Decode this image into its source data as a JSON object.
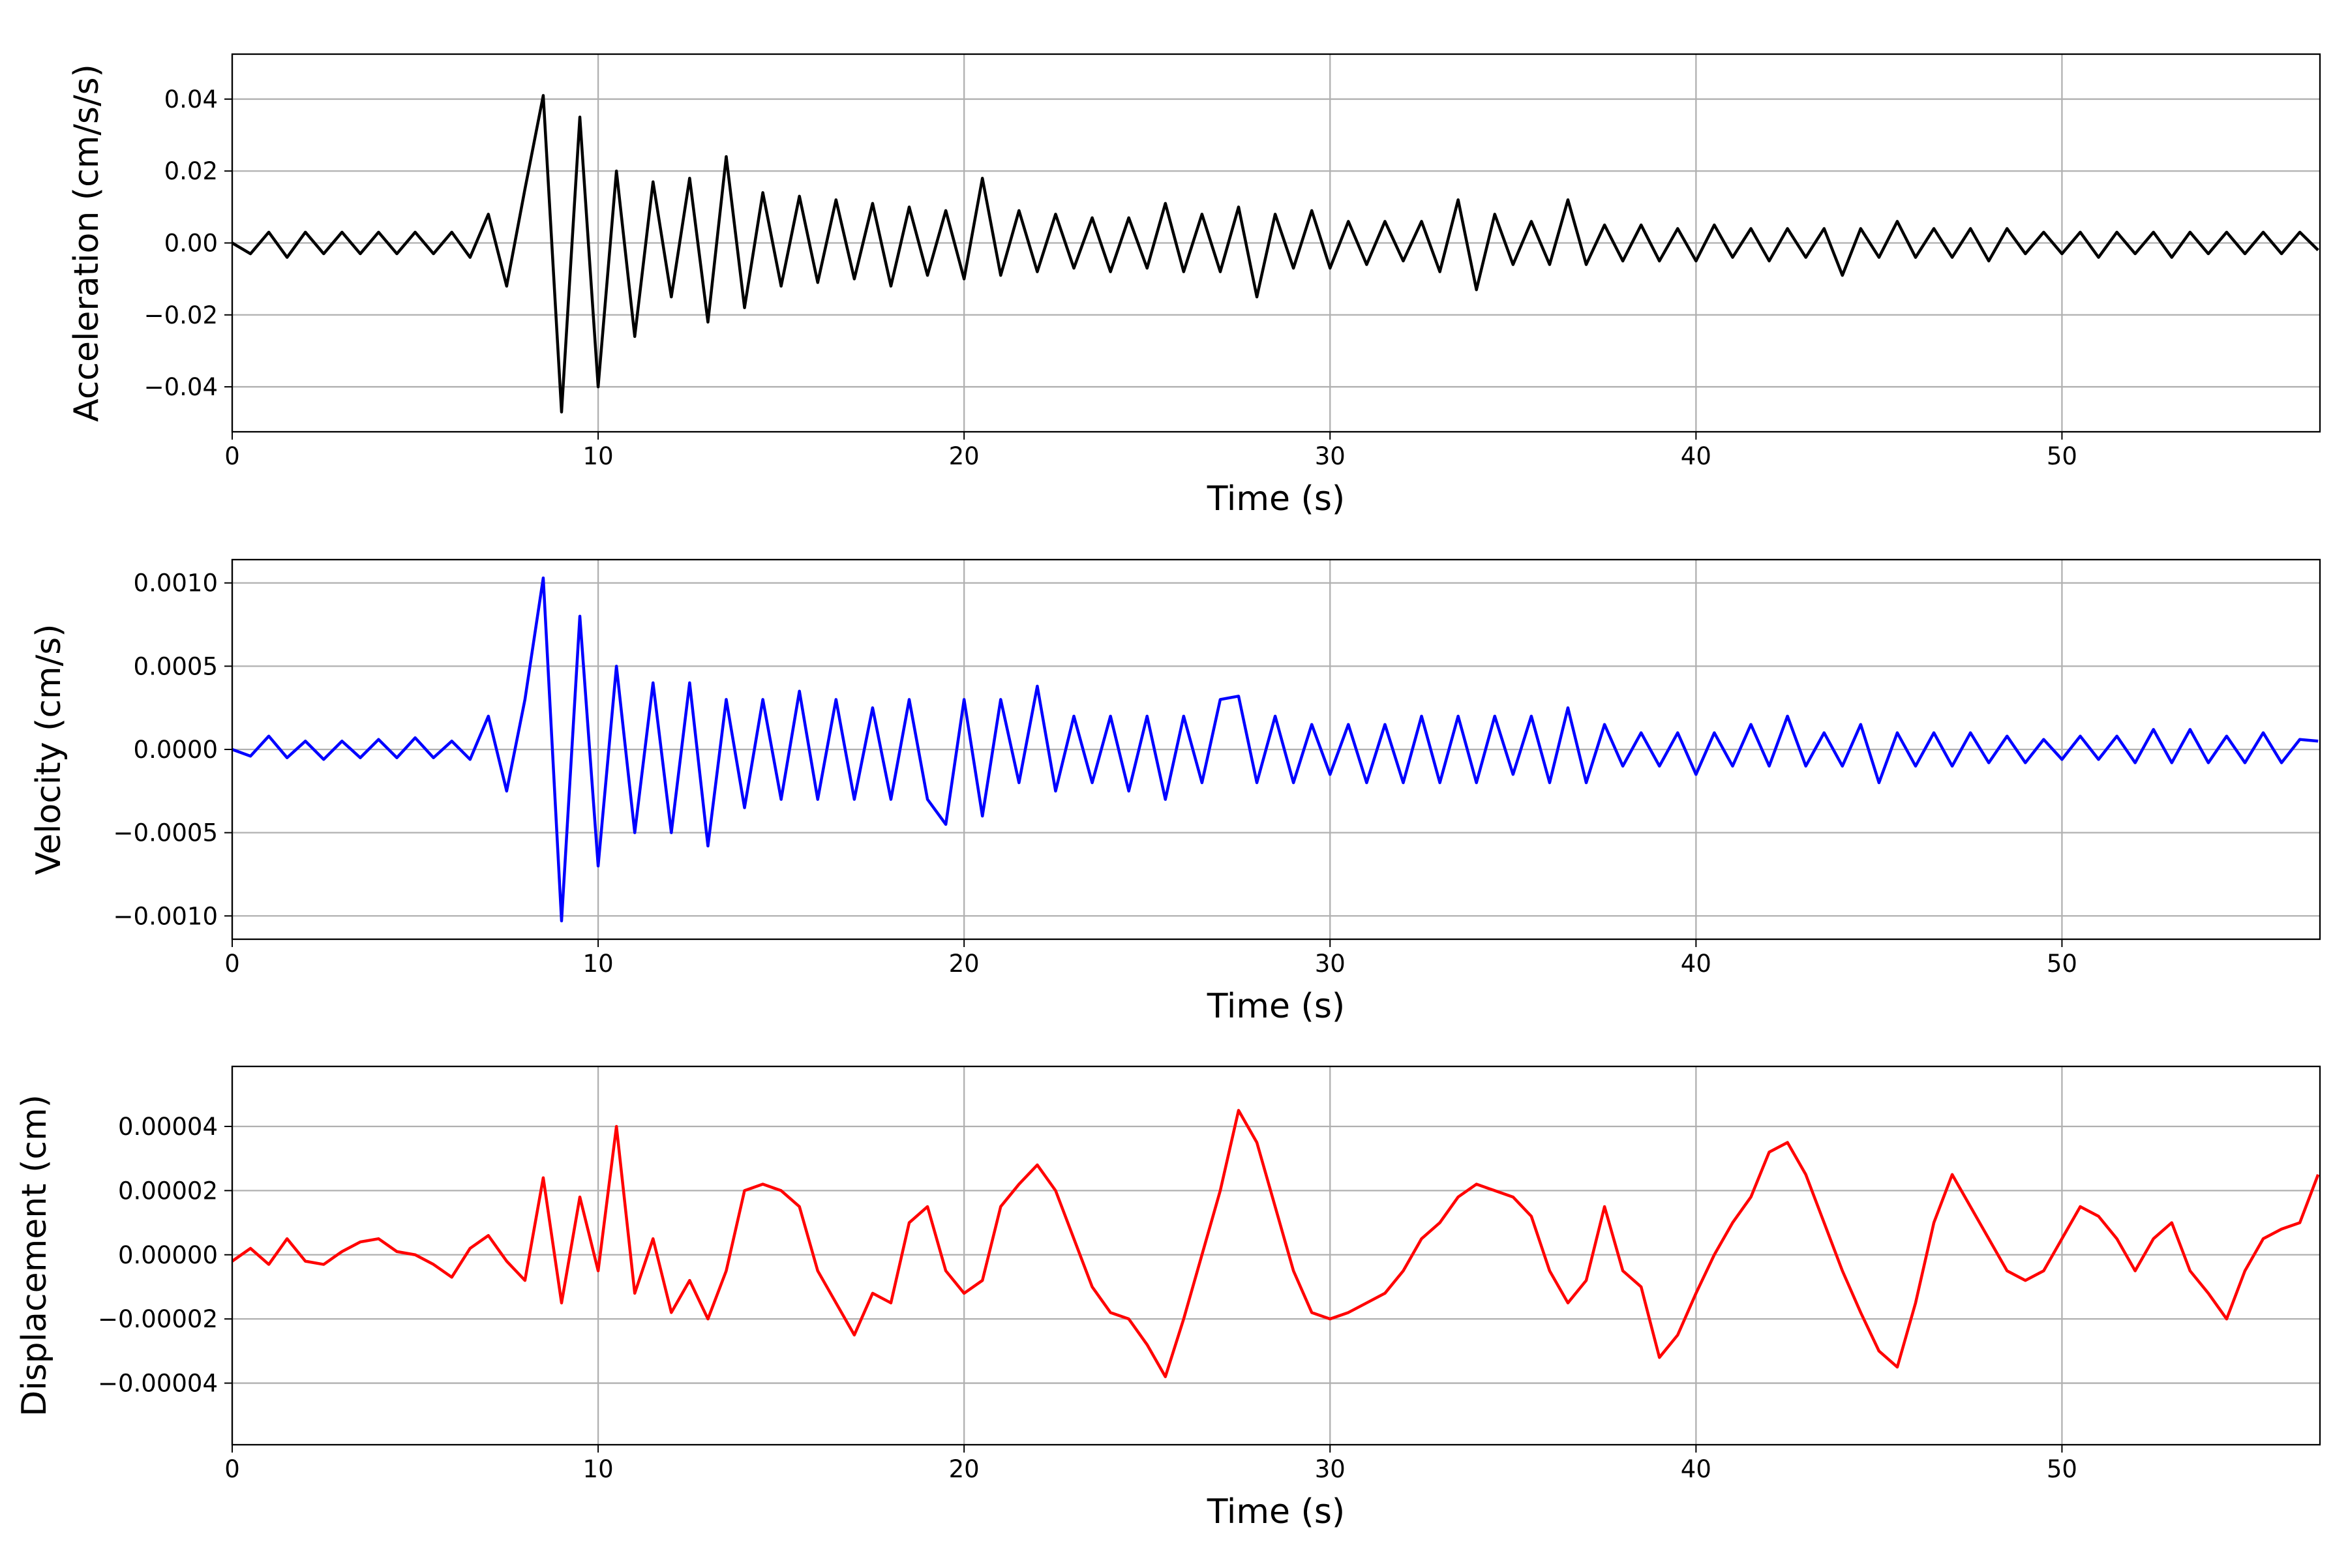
{
  "chart_data": [
    {
      "type": "line",
      "xlabel": "Time (s)",
      "ylabel": "Acceleration (cm/s/s)",
      "color": "#000000",
      "grid": true,
      "xlim": [
        0,
        57.05
      ],
      "xticks": [
        0,
        10,
        20,
        30,
        40,
        50
      ],
      "ylim": [
        -0.0525,
        0.0525
      ],
      "yticks": [
        {
          "value": -0.04,
          "label": "−0.04"
        },
        {
          "value": -0.02,
          "label": "−0.02"
        },
        {
          "value": 0,
          "label": "0.00"
        },
        0.02,
        0.04
      ],
      "x": [
        0,
        0.5,
        1,
        1.5,
        2,
        2.5,
        3,
        3.5,
        4,
        4.5,
        5,
        5.5,
        6,
        6.5,
        7,
        7.5,
        8,
        8.5,
        9,
        9.5,
        10,
        10.5,
        11,
        11.5,
        12,
        12.5,
        13,
        13.5,
        14,
        14.5,
        15,
        15.5,
        16,
        16.5,
        17,
        17.5,
        18,
        18.5,
        19,
        19.5,
        20,
        20.5,
        21,
        21.5,
        22,
        22.5,
        23,
        23.5,
        24,
        24.5,
        25,
        25.5,
        26,
        26.5,
        27,
        27.5,
        28,
        28.5,
        29,
        29.5,
        30,
        30.5,
        31,
        31.5,
        32,
        32.5,
        33,
        33.5,
        34,
        34.5,
        35,
        35.5,
        36,
        36.5,
        37,
        37.5,
        38,
        38.5,
        39,
        39.5,
        40,
        40.5,
        41,
        41.5,
        42,
        42.5,
        43,
        43.5,
        44,
        44.5,
        45,
        45.5,
        46,
        46.5,
        47,
        47.5,
        48,
        48.5,
        49,
        49.5,
        50,
        50.5,
        51,
        51.5,
        52,
        52.5,
        53,
        53.5,
        54,
        54.5,
        55,
        55.5,
        56,
        56.5,
        57
      ],
      "values": [
        0,
        -0.003,
        0.003,
        -0.004,
        0.003,
        -0.003,
        0.003,
        -0.003,
        0.003,
        -0.003,
        0.003,
        -0.003,
        0.003,
        -0.004,
        0.008,
        -0.012,
        0.015,
        0.041,
        -0.047,
        0.035,
        -0.04,
        0.02,
        -0.026,
        0.017,
        -0.015,
        0.018,
        -0.022,
        0.024,
        -0.018,
        0.014,
        -0.012,
        0.013,
        -0.011,
        0.012,
        -0.01,
        0.011,
        -0.012,
        0.01,
        -0.009,
        0.009,
        -0.01,
        0.018,
        -0.009,
        0.009,
        -0.008,
        0.008,
        -0.007,
        0.007,
        -0.008,
        0.007,
        -0.007,
        0.011,
        -0.008,
        0.008,
        -0.008,
        0.01,
        -0.015,
        0.008,
        -0.007,
        0.009,
        -0.007,
        0.006,
        -0.006,
        0.006,
        -0.005,
        0.006,
        -0.008,
        0.012,
        -0.013,
        0.008,
        -0.006,
        0.006,
        -0.006,
        0.012,
        -0.006,
        0.005,
        -0.005,
        0.005,
        -0.005,
        0.004,
        -0.005,
        0.005,
        -0.004,
        0.004,
        -0.005,
        0.004,
        -0.004,
        0.004,
        -0.009,
        0.004,
        -0.004,
        0.006,
        -0.004,
        0.004,
        -0.004,
        0.004,
        -0.005,
        0.004,
        -0.003,
        0.003,
        -0.003,
        0.003,
        -0.004,
        0.003,
        -0.003,
        0.003,
        -0.004,
        0.003,
        -0.003,
        0.003,
        -0.003,
        0.003,
        -0.003,
        0.003,
        -0.002
      ]
    },
    {
      "type": "line",
      "xlabel": "Time (s)",
      "ylabel": "Velocity (cm/s)",
      "color": "#0000ff",
      "grid": true,
      "xlim": [
        0,
        57.05
      ],
      "xticks": [
        0,
        10,
        20,
        30,
        40,
        50
      ],
      "ylim": [
        -0.00114,
        0.00114
      ],
      "yticks": [
        {
          "value": -0.001,
          "label": "−0.0010"
        },
        {
          "value": -0.0005,
          "label": "−0.0005"
        },
        {
          "value": 0,
          "label": "0.0000"
        },
        {
          "value": 0.0005,
          "label": "0.0005"
        },
        {
          "value": 0.001,
          "label": "0.0010"
        }
      ],
      "x": [
        0,
        0.5,
        1,
        1.5,
        2,
        2.5,
        3,
        3.5,
        4,
        4.5,
        5,
        5.5,
        6,
        6.5,
        7,
        7.5,
        8,
        8.5,
        9,
        9.5,
        10,
        10.5,
        11,
        11.5,
        12,
        12.5,
        13,
        13.5,
        14,
        14.5,
        15,
        15.5,
        16,
        16.5,
        17,
        17.5,
        18,
        18.5,
        19,
        19.5,
        20,
        20.5,
        21,
        21.5,
        22,
        22.5,
        23,
        23.5,
        24,
        24.5,
        25,
        25.5,
        26,
        26.5,
        27,
        27.5,
        28,
        28.5,
        29,
        29.5,
        30,
        30.5,
        31,
        31.5,
        32,
        32.5,
        33,
        33.5,
        34,
        34.5,
        35,
        35.5,
        36,
        36.5,
        37,
        37.5,
        38,
        38.5,
        39,
        39.5,
        40,
        40.5,
        41,
        41.5,
        42,
        42.5,
        43,
        43.5,
        44,
        44.5,
        45,
        45.5,
        46,
        46.5,
        47,
        47.5,
        48,
        48.5,
        49,
        49.5,
        50,
        50.5,
        51,
        51.5,
        52,
        52.5,
        53,
        53.5,
        54,
        54.5,
        55,
        55.5,
        56,
        56.5,
        57
      ],
      "values": [
        0,
        -4e-05,
        8e-05,
        -5e-05,
        5e-05,
        -6e-05,
        5e-05,
        -5e-05,
        6e-05,
        -5e-05,
        7e-05,
        -5e-05,
        5e-05,
        -6e-05,
        0.0002,
        -0.00025,
        0.0003,
        0.00103,
        -0.00103,
        0.0008,
        -0.0007,
        0.0005,
        -0.0005,
        0.0004,
        -0.0005,
        0.0004,
        -0.00058,
        0.0003,
        -0.00035,
        0.0003,
        -0.0003,
        0.00035,
        -0.0003,
        0.0003,
        -0.0003,
        0.00025,
        -0.0003,
        0.0003,
        -0.0003,
        -0.00045,
        0.0003,
        -0.0004,
        0.0003,
        -0.0002,
        0.00038,
        -0.00025,
        0.0002,
        -0.0002,
        0.0002,
        -0.00025,
        0.0002,
        -0.0003,
        0.0002,
        -0.0002,
        0.0003,
        0.00032,
        -0.0002,
        0.0002,
        -0.0002,
        0.00015,
        -0.00015,
        0.00015,
        -0.0002,
        0.00015,
        -0.0002,
        0.0002,
        -0.0002,
        0.0002,
        -0.0002,
        0.0002,
        -0.00015,
        0.0002,
        -0.0002,
        0.00025,
        -0.0002,
        0.00015,
        -0.0001,
        0.0001,
        -0.0001,
        0.0001,
        -0.00015,
        0.0001,
        -0.0001,
        0.00015,
        -0.0001,
        0.0002,
        -0.0001,
        0.0001,
        -0.0001,
        0.00015,
        -0.0002,
        0.0001,
        -0.0001,
        0.0001,
        -0.0001,
        0.0001,
        -8e-05,
        8e-05,
        -8e-05,
        6e-05,
        -6e-05,
        8e-05,
        -6e-05,
        8e-05,
        -8e-05,
        0.00012,
        -8e-05,
        0.00012,
        -8e-05,
        8e-05,
        -8e-05,
        0.0001,
        -8e-05,
        6e-05,
        5e-05
      ]
    },
    {
      "type": "line",
      "xlabel": "Time (s)",
      "ylabel": "Displacement (cm)",
      "color": "#ff0000",
      "grid": true,
      "xlim": [
        0,
        57.05
      ],
      "xticks": [
        0,
        10,
        20,
        30,
        40,
        50
      ],
      "ylim": [
        -5.92e-05,
        5.87e-05
      ],
      "yticks": [
        {
          "value": -4e-05,
          "label": "−0.00004"
        },
        {
          "value": -2e-05,
          "label": "−0.00002"
        },
        {
          "value": 0,
          "label": "0.00000"
        },
        2e-05,
        4e-05
      ],
      "x": [
        0,
        0.5,
        1,
        1.5,
        2,
        2.5,
        3,
        3.5,
        4,
        4.5,
        5,
        5.5,
        6,
        6.5,
        7,
        7.5,
        8,
        8.5,
        9,
        9.5,
        10,
        10.5,
        11,
        11.5,
        12,
        12.5,
        13,
        13.5,
        14,
        14.5,
        15,
        15.5,
        16,
        16.5,
        17,
        17.5,
        18,
        18.5,
        19,
        19.5,
        20,
        20.5,
        21,
        21.5,
        22,
        22.5,
        23,
        23.5,
        24,
        24.5,
        25,
        25.5,
        26,
        26.5,
        27,
        27.5,
        28,
        28.5,
        29,
        29.5,
        30,
        30.5,
        31,
        31.5,
        32,
        32.5,
        33,
        33.5,
        34,
        34.5,
        35,
        35.5,
        36,
        36.5,
        37,
        37.5,
        38,
        38.5,
        39,
        39.5,
        40,
        40.5,
        41,
        41.5,
        42,
        42.5,
        43,
        43.5,
        44,
        44.5,
        45,
        45.5,
        46,
        46.5,
        47,
        47.5,
        48,
        48.5,
        49,
        49.5,
        50,
        50.5,
        51,
        51.5,
        52,
        52.5,
        53,
        53.5,
        54,
        54.5,
        55,
        55.5,
        56,
        56.5,
        57
      ],
      "values": [
        -2e-06,
        2e-06,
        -3e-06,
        5e-06,
        -2e-06,
        -3e-06,
        1e-06,
        4e-06,
        5e-06,
        1e-06,
        0,
        -3e-06,
        -7e-06,
        2e-06,
        6e-06,
        -2e-06,
        -8e-06,
        2.4e-05,
        -1.5e-05,
        1.8e-05,
        -5e-06,
        4e-05,
        -1.2e-05,
        5e-06,
        -1.8e-05,
        -8e-06,
        -2e-05,
        -5e-06,
        2e-05,
        2.2e-05,
        2e-05,
        1.5e-05,
        -5e-06,
        -1.5e-05,
        -2.5e-05,
        -1.2e-05,
        -1.5e-05,
        1e-05,
        1.5e-05,
        -5e-06,
        -1.2e-05,
        -8e-06,
        1.5e-05,
        2.2e-05,
        2.8e-05,
        2e-05,
        5e-06,
        -1e-05,
        -1.8e-05,
        -2e-05,
        -2.8e-05,
        -3.8e-05,
        -2e-05,
        0,
        2e-05,
        4.5e-05,
        3.5e-05,
        1.5e-05,
        -5e-06,
        -1.8e-05,
        -2e-05,
        -1.8e-05,
        -1.5e-05,
        -1.2e-05,
        -5e-06,
        5e-06,
        1e-05,
        1.8e-05,
        2.2e-05,
        2e-05,
        1.8e-05,
        1.2e-05,
        -5e-06,
        -1.5e-05,
        -8e-06,
        1.5e-05,
        -5e-06,
        -1e-05,
        -3.2e-05,
        -2.5e-05,
        -1.2e-05,
        0,
        1e-05,
        1.8e-05,
        3.2e-05,
        3.5e-05,
        2.5e-05,
        1e-05,
        -5e-06,
        -1.8e-05,
        -3e-05,
        -3.5e-05,
        -1.5e-05,
        1e-05,
        2.5e-05,
        1.5e-05,
        5e-06,
        -5e-06,
        -8e-06,
        -5e-06,
        5e-06,
        1.5e-05,
        1.2e-05,
        5e-06,
        -5e-06,
        5e-06,
        1e-05,
        -5e-06,
        -1.2e-05,
        -2e-05,
        -5e-06,
        5e-06,
        8e-06,
        1e-05,
        2.5e-05
      ]
    }
  ]
}
